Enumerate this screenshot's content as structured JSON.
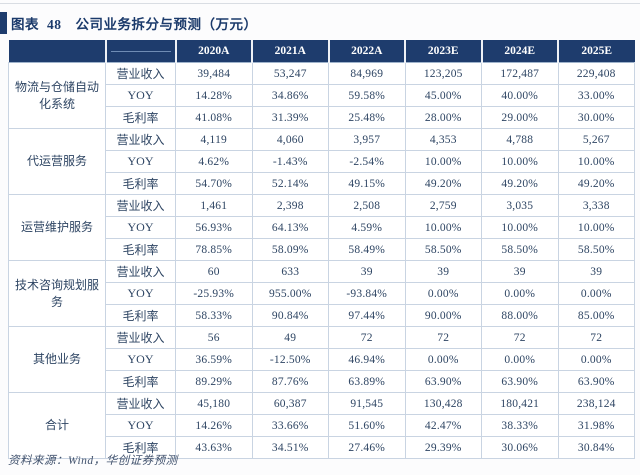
{
  "title": {
    "figure_label": "图表",
    "figure_number": "48",
    "text": "公司业务拆分与预测（万元）"
  },
  "colors": {
    "header_bg": "#1e3c6d",
    "header_text": "#ffffff",
    "cell_text": "#2e4563",
    "border_light": "#c9d4e2",
    "border_group": "#9fb3cb",
    "title_color": "#1b3a6b",
    "footer_color": "#42536e",
    "page_bg": "#fcfcfd"
  },
  "chart_data": {
    "type": "table",
    "title": "公司业务拆分与预测（万元）",
    "unit": "万元",
    "year_columns": [
      "2020A",
      "2021A",
      "2022A",
      "2023E",
      "2024E",
      "2025E"
    ],
    "metric_rows": [
      "营业收入",
      "YOY",
      "毛利率"
    ],
    "groups": [
      {
        "name": "物流与仓储自动化系统",
        "rows": [
          {
            "metric": "营业收入",
            "values": [
              "39,484",
              "53,247",
              "84,969",
              "123,205",
              "172,487",
              "229,408"
            ]
          },
          {
            "metric": "YOY",
            "values": [
              "14.28%",
              "34.86%",
              "59.58%",
              "45.00%",
              "40.00%",
              "33.00%"
            ]
          },
          {
            "metric": "毛利率",
            "values": [
              "41.08%",
              "31.39%",
              "25.48%",
              "28.00%",
              "29.00%",
              "30.00%"
            ]
          }
        ]
      },
      {
        "name": "代运营服务",
        "rows": [
          {
            "metric": "营业收入",
            "values": [
              "4,119",
              "4,060",
              "3,957",
              "4,353",
              "4,788",
              "5,267"
            ]
          },
          {
            "metric": "YOY",
            "values": [
              "4.62%",
              "-1.43%",
              "-2.54%",
              "10.00%",
              "10.00%",
              "10.00%"
            ]
          },
          {
            "metric": "毛利率",
            "values": [
              "54.70%",
              "52.14%",
              "49.15%",
              "49.20%",
              "49.20%",
              "49.20%"
            ]
          }
        ]
      },
      {
        "name": "运营维护服务",
        "rows": [
          {
            "metric": "营业收入",
            "values": [
              "1,461",
              "2,398",
              "2,508",
              "2,759",
              "3,035",
              "3,338"
            ]
          },
          {
            "metric": "YOY",
            "values": [
              "56.93%",
              "64.13%",
              "4.59%",
              "10.00%",
              "10.00%",
              "10.00%"
            ]
          },
          {
            "metric": "毛利率",
            "values": [
              "78.85%",
              "58.09%",
              "58.49%",
              "58.50%",
              "58.50%",
              "58.50%"
            ]
          }
        ]
      },
      {
        "name": "技术咨询规划服务",
        "rows": [
          {
            "metric": "营业收入",
            "values": [
              "60",
              "633",
              "39",
              "39",
              "39",
              "39"
            ]
          },
          {
            "metric": "YOY",
            "values": [
              "-25.93%",
              "955.00%",
              "-93.84%",
              "0.00%",
              "0.00%",
              "0.00%"
            ]
          },
          {
            "metric": "毛利率",
            "values": [
              "58.33%",
              "90.84%",
              "97.44%",
              "90.00%",
              "88.00%",
              "85.00%"
            ]
          }
        ]
      },
      {
        "name": "其他业务",
        "rows": [
          {
            "metric": "营业收入",
            "values": [
              "56",
              "49",
              "72",
              "72",
              "72",
              "72"
            ]
          },
          {
            "metric": "YOY",
            "values": [
              "36.59%",
              "-12.50%",
              "46.94%",
              "0.00%",
              "0.00%",
              "0.00%"
            ]
          },
          {
            "metric": "毛利率",
            "values": [
              "89.29%",
              "87.76%",
              "63.89%",
              "63.90%",
              "63.90%",
              "63.90%"
            ]
          }
        ]
      },
      {
        "name": "合计",
        "rows": [
          {
            "metric": "营业收入",
            "values": [
              "45,180",
              "60,387",
              "91,545",
              "130,428",
              "180,421",
              "238,124"
            ]
          },
          {
            "metric": "YOY",
            "values": [
              "14.26%",
              "33.66%",
              "51.60%",
              "42.47%",
              "38.33%",
              "31.98%"
            ]
          },
          {
            "metric": "毛利率",
            "values": [
              "43.63%",
              "34.51%",
              "27.46%",
              "29.39%",
              "30.06%",
              "30.84%"
            ]
          }
        ]
      }
    ]
  },
  "footer": {
    "source": "资料来源：Wind，华创证券预测"
  }
}
